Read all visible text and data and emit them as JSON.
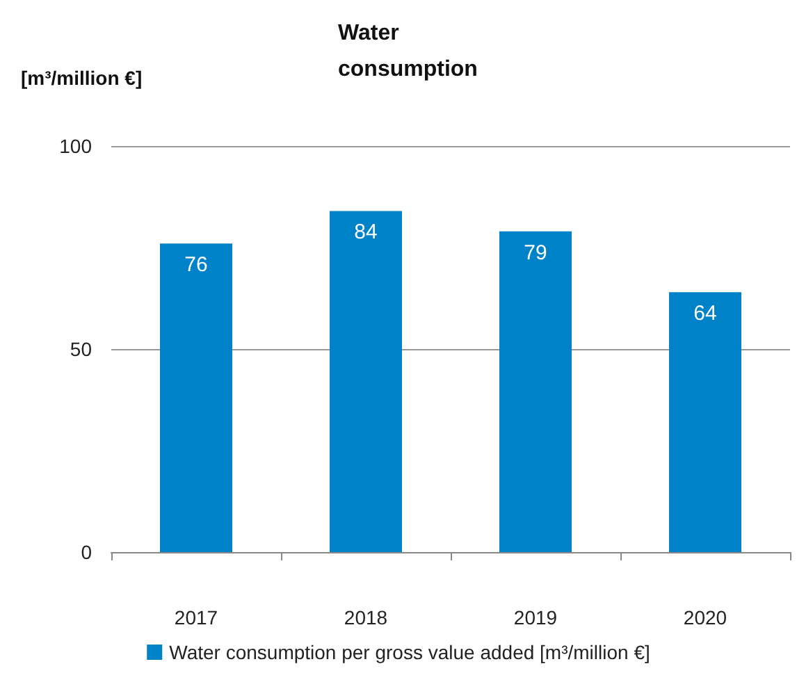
{
  "chart_data": {
    "type": "bar",
    "title": "Water consumption",
    "ylabel": "[m³/million €]",
    "categories": [
      "2017",
      "2018",
      "2019",
      "2020"
    ],
    "series": [
      {
        "name": "Water consumption per gross value added [m³/million €]",
        "color": "#0082c8",
        "values": [
          76,
          84,
          79,
          64
        ]
      }
    ],
    "ylim": [
      0,
      100
    ],
    "yticks": [
      0,
      50,
      100
    ],
    "grid": "y",
    "legend": "bottom",
    "data_labels": true
  }
}
